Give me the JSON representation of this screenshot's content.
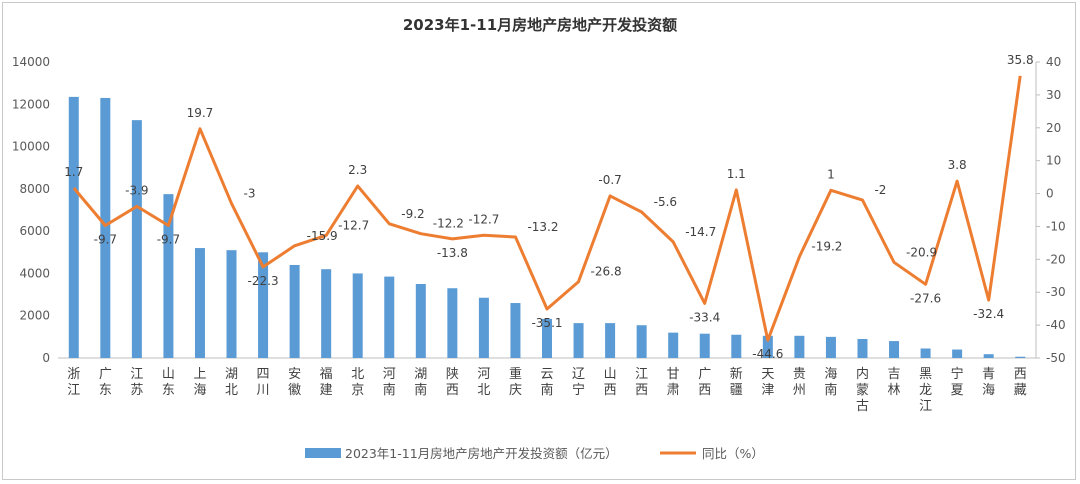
{
  "chart_data": {
    "type": "bar",
    "title": "2023年1-11月房地产房地产开发投资额",
    "categories": [
      "浙江",
      "广东",
      "江苏",
      "山东",
      "上海",
      "湖北",
      "四川",
      "安徽",
      "福建",
      "北京",
      "河南",
      "湖南",
      "陕西",
      "河北",
      "重庆",
      "云南",
      "辽宁",
      "山西",
      "江西",
      "甘肃",
      "广西",
      "新疆",
      "天津",
      "贵州",
      "海南",
      "内蒙古",
      "吉林",
      "黑龙江",
      "宁夏",
      "青海",
      "西藏"
    ],
    "series": [
      {
        "name": "2023年1-11月房地产房地产开发投资额（亿元）",
        "type": "bar",
        "axis": "left",
        "color": "#5b9bd5",
        "values": [
          12350,
          12300,
          11250,
          7750,
          5200,
          5100,
          5000,
          4400,
          4200,
          4000,
          3850,
          3500,
          3300,
          2850,
          2600,
          1850,
          1650,
          1650,
          1550,
          1200,
          1150,
          1100,
          1050,
          1050,
          1000,
          900,
          800,
          450,
          400,
          180,
          60
        ]
      },
      {
        "name": "同比（%）",
        "type": "line",
        "axis": "right",
        "color": "#ed7d31",
        "values": [
          1.7,
          -9.7,
          -3.9,
          -9.7,
          19.7,
          -3,
          -22.3,
          -15.9,
          -12.7,
          2.3,
          -9.2,
          -12.2,
          -13.8,
          -12.7,
          -13.2,
          -35.1,
          -26.8,
          -0.7,
          -5.6,
          -14.7,
          -33.4,
          1.1,
          -44.6,
          -19.2,
          1,
          -2,
          -20.9,
          -27.6,
          3.8,
          -32.4,
          35.8
        ],
        "labels": [
          "1.7",
          "-9.7",
          "-3.9",
          "-9.7",
          "19.7",
          "-3",
          "-22.3",
          "-15.9",
          "-12.7",
          "2.3",
          "-9.2",
          "-12.2",
          "-13.8",
          "-12.7",
          "-13.2",
          "-35.1",
          "-26.8",
          "-0.7",
          "-5.6",
          "-14.7",
          "-33.4",
          "1.1",
          "-44.6",
          "-19.2",
          "1",
          "-2",
          "-20.9",
          "-27.6",
          "3.8",
          "-32.4",
          "35.8"
        ]
      }
    ],
    "y_left": {
      "min": 0,
      "max": 14000,
      "step": 2000,
      "ticks": [
        "0",
        "2000",
        "4000",
        "6000",
        "8000",
        "10000",
        "12000",
        "14000"
      ]
    },
    "y_right": {
      "min": -50,
      "max": 40,
      "step": 10,
      "ticks": [
        "-50",
        "-40",
        "-30",
        "-20",
        "-10",
        "0",
        "10",
        "20",
        "30",
        "40"
      ]
    },
    "grid": false,
    "legend_position": "bottom"
  }
}
